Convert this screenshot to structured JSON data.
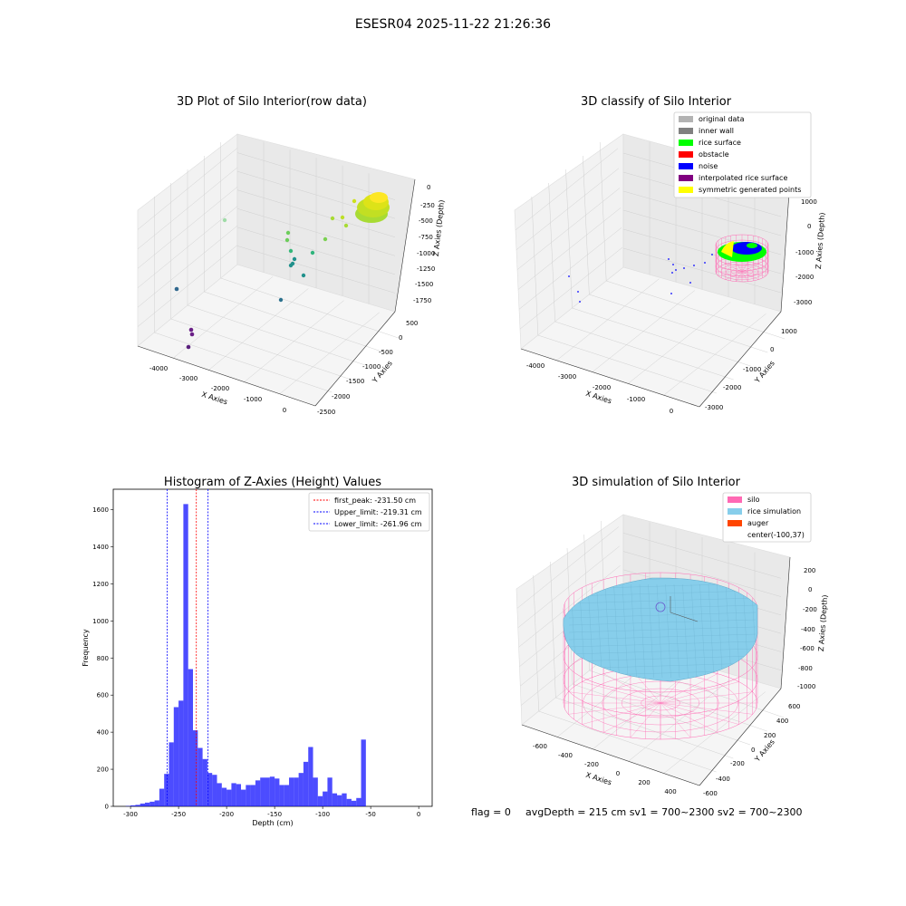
{
  "figure_title": "ESESR04 2025-11-22 21:26:36",
  "footer": {
    "flag": "flag = 0",
    "stats": "avgDepth = 215 cm  sv1 = 700~2300  sv2 = 700~2300"
  },
  "panels": {
    "raw": {
      "title": "3D Plot of Silo Interior(row data)",
      "xlabel": "X Axies",
      "ylabel": "Y Axies",
      "zlabel": "Z Axies (Depth)",
      "xticks": [
        "-4000",
        "-3000",
        "-2000",
        "-1000",
        "0"
      ],
      "yticks": [
        "500",
        "0",
        "-500",
        "-1000",
        "-1500",
        "-2000",
        "-2500"
      ],
      "zticks": [
        "0",
        "-250",
        "-500",
        "-750",
        "-1000",
        "-1250",
        "-1500",
        "-1750"
      ]
    },
    "classify": {
      "title": "3D classify of Silo Interior",
      "xlabel": "X Axies",
      "ylabel": "Y Axies",
      "zlabel": "Z Axies (Depth)",
      "xticks": [
        "-4000",
        "-3000",
        "-2000",
        "-1000",
        "0"
      ],
      "yticks": [
        "1000",
        "0",
        "-1000",
        "-2000",
        "-3000"
      ],
      "zticks": [
        "1000",
        "0",
        "-1000",
        "-2000",
        "-3000"
      ],
      "legend": [
        {
          "label": "original data",
          "color": "#b3b3b3"
        },
        {
          "label": "inner wall",
          "color": "#808080"
        },
        {
          "label": "rice surface",
          "color": "#00ff00"
        },
        {
          "label": "obstacle",
          "color": "#ff0000"
        },
        {
          "label": "noise",
          "color": "#0000ff"
        },
        {
          "label": "interpolated rice surface",
          "color": "#800080"
        },
        {
          "label": "symmetric generated points",
          "color": "#ffff00"
        }
      ]
    },
    "simulation": {
      "title": "3D simulation of Silo Interior",
      "xlabel": "X Axies",
      "ylabel": "Y Axies",
      "zlabel": "Z Axies (Depth)",
      "xticks": [
        "-600",
        "-400",
        "-200",
        "0",
        "200",
        "400"
      ],
      "yticks": [
        "600",
        "400",
        "200",
        "0",
        "-200",
        "-400",
        "-600"
      ],
      "zticks": [
        "200",
        "0",
        "-200",
        "-400",
        "-600",
        "-800",
        "-1000"
      ],
      "legend": [
        {
          "label": "silo",
          "color": "#ff69b4"
        },
        {
          "label": "rice simulation",
          "color": "#87ceeb"
        },
        {
          "label": "auger",
          "color": "#ff4500"
        },
        {
          "label": "center(-100,37)",
          "color": "none"
        }
      ]
    }
  },
  "chart_data": {
    "type": "bar",
    "title": "Histogram of Z-Axies (Height) Values",
    "xlabel": "Depth (cm)",
    "ylabel": "Frequency",
    "xlim": [
      -318,
      14
    ],
    "ylim": [
      0,
      1710
    ],
    "xticks": [
      -300,
      -250,
      -200,
      -150,
      -100,
      -50,
      0
    ],
    "yticks": [
      0,
      200,
      400,
      600,
      800,
      1000,
      1200,
      1400,
      1600
    ],
    "bin_width": 5,
    "bin_starts": [
      -305,
      -300,
      -295,
      -290,
      -285,
      -280,
      -275,
      -270,
      -265,
      -260,
      -255,
      -250,
      -245,
      -240,
      -235,
      -230,
      -225,
      -220,
      -215,
      -210,
      -205,
      -200,
      -195,
      -190,
      -185,
      -180,
      -175,
      -170,
      -165,
      -160,
      -155,
      -150,
      -145,
      -140,
      -135,
      -130,
      -125,
      -120,
      -115,
      -110,
      -105,
      -100,
      -95,
      -90,
      -85,
      -80,
      -75,
      -70,
      -65,
      -60,
      -55,
      -50,
      -45,
      -40,
      -35,
      -30,
      -25,
      -20,
      -15,
      -10,
      -5,
      0
    ],
    "counts": [
      2,
      5,
      8,
      15,
      20,
      25,
      32,
      95,
      175,
      345,
      535,
      570,
      1630,
      740,
      410,
      315,
      255,
      180,
      170,
      125,
      100,
      90,
      125,
      120,
      90,
      115,
      115,
      140,
      155,
      155,
      160,
      150,
      115,
      115,
      155,
      155,
      180,
      240,
      320,
      155,
      55,
      80,
      155,
      70,
      60,
      70,
      40,
      30,
      45,
      360,
      0,
      0,
      0,
      0,
      0,
      0,
      0,
      0,
      0,
      0,
      0,
      0
    ],
    "bar_color": "#0000ff",
    "lines": [
      {
        "label": "first_peak: -231.50 cm",
        "x": -231.5,
        "color": "#ff0000"
      },
      {
        "label": "Upper_limit: -219.31 cm",
        "x": -219.31,
        "color": "#0000ff"
      },
      {
        "label": "Lower_limit: -261.96 cm",
        "x": -261.96,
        "color": "#0000ff"
      }
    ],
    "legend_position": "top-right"
  }
}
